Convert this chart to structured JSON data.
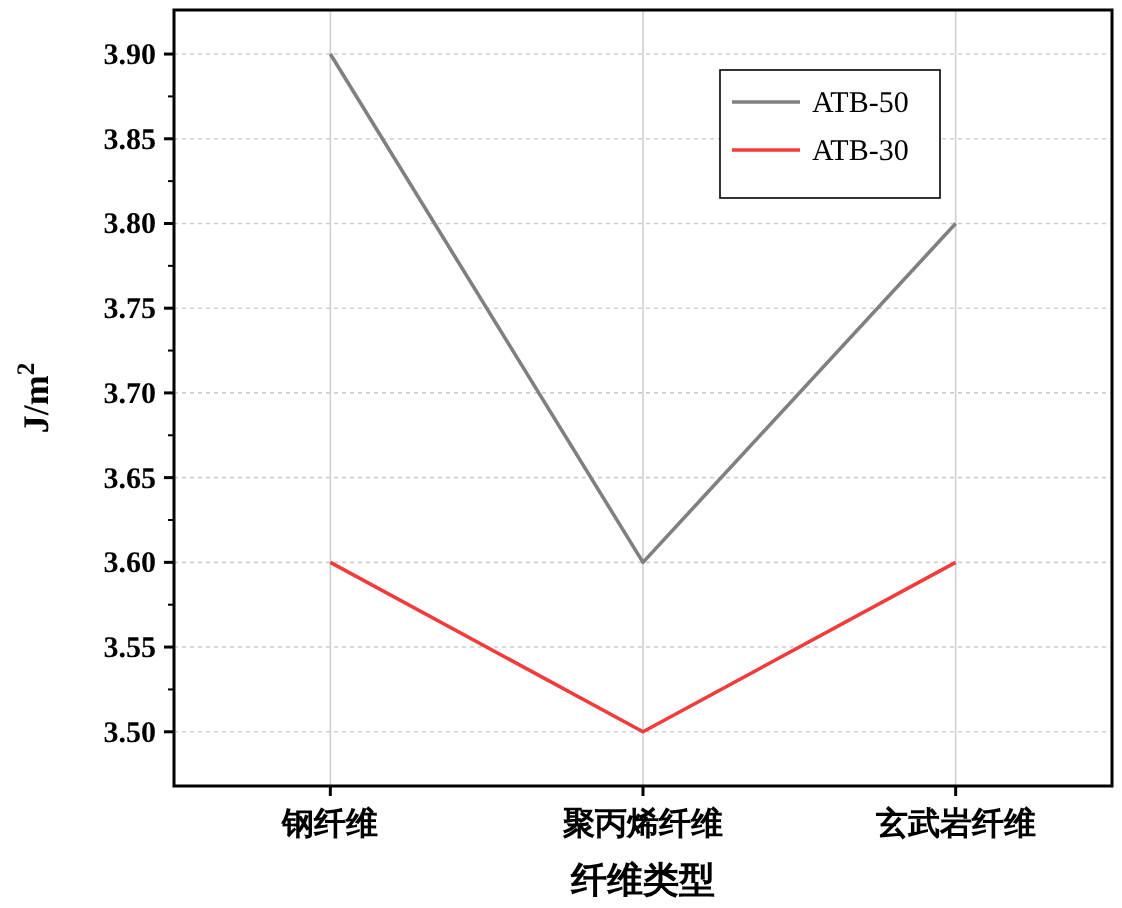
{
  "chart_data": {
    "type": "line",
    "categories": [
      "钢纤维",
      "聚丙烯纤维",
      "玄武岩纤维"
    ],
    "xlabel": "纤维类型",
    "ylabel": "J/m$^{2}$",
    "series": [
      {
        "name": "ATB-50",
        "color": "#808080",
        "values": [
          3.9,
          3.6,
          3.8
        ]
      },
      {
        "name": "ATB-30",
        "color": "#f03c3c",
        "values": [
          3.6,
          3.5,
          3.6
        ]
      }
    ],
    "ylim": [
      3.468,
      3.926
    ],
    "yticks": [
      {
        "value": 3.5,
        "label": "3.50"
      },
      {
        "value": 3.55,
        "label": "3.55"
      },
      {
        "value": 3.6,
        "label": "3.60"
      },
      {
        "value": 3.65,
        "label": "3.65"
      },
      {
        "value": 3.7,
        "label": "3.70"
      },
      {
        "value": 3.75,
        "label": "3.75"
      },
      {
        "value": 3.8,
        "label": "3.80"
      },
      {
        "value": 3.85,
        "label": "3.85"
      },
      {
        "value": 3.9,
        "label": "3.90"
      }
    ],
    "grid": true,
    "legend": "top right"
  }
}
